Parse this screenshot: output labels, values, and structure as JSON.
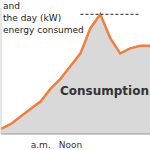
{
  "chart_data": {
    "type": "area",
    "annotations": [
      "and",
      "the day (kW)",
      "energy consumed",
      "Consumption"
    ],
    "categories": [
      null,
      null,
      null,
      null,
      "a.m.",
      null,
      null,
      "Noon",
      null,
      null,
      null,
      null,
      null,
      null,
      null,
      null
    ],
    "values": [
      4,
      8,
      14,
      20,
      26,
      36,
      44,
      54,
      64,
      84,
      95,
      76,
      64,
      68,
      70,
      70
    ],
    "color": "#f07f3c",
    "ylim": [
      0,
      100
    ],
    "tick_labels": "x",
    "grid": false
  }
}
